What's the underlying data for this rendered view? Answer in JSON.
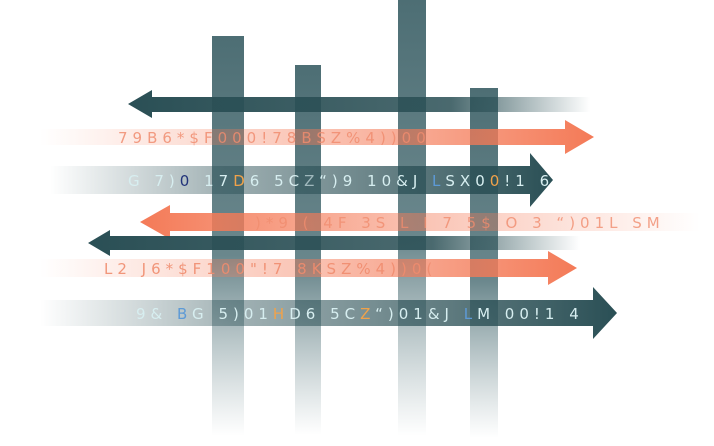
{
  "colors": {
    "teal_dark": "#2a4f55",
    "teal_pillar": "#4d6e74",
    "coral": "#f47a57",
    "coral_text": "#f08c6e",
    "light_text": "#d7eef0",
    "blue_accent": "#5d9ad6",
    "navy_accent": "#22337a",
    "orange_accent": "#f0a24a"
  },
  "streams": [
    {
      "id": "coral-1",
      "parts": [
        {
          "t": "79B6*$F000!78BSZ%4))00"
        }
      ]
    },
    {
      "id": "teal-1",
      "parts": [
        {
          "t": "G 7)"
        },
        {
          "t": "0",
          "c": "navy"
        },
        {
          "t": " 17"
        },
        {
          "t": "D",
          "c": "orange"
        },
        {
          "t": "6 5C"
        },
        {
          "t": "Z",
          "c": "grey"
        },
        {
          "t": "“)9 10&J "
        },
        {
          "t": "L",
          "c": "blue"
        },
        {
          "t": "SX0"
        },
        {
          "t": "0",
          "c": "orange"
        },
        {
          "t": "!1 6"
        }
      ]
    },
    {
      "id": "coral-2",
      "parts": [
        {
          "t": ")*9 ( 4F 3S L I 7 5$ O 3  “)01L SM"
        }
      ]
    },
    {
      "id": "coral-3",
      "parts": [
        {
          "t": "L2 J6*$F100\"!7 8KSZ%4))0("
        }
      ]
    },
    {
      "id": "teal-2",
      "parts": [
        {
          "t": "9& "
        },
        {
          "t": "B",
          "c": "blue"
        },
        {
          "t": "G 5)01"
        },
        {
          "t": "H",
          "c": "orange"
        },
        {
          "t": "D6 5C"
        },
        {
          "t": "Z",
          "c": "orange"
        },
        {
          "t": "“)01&J "
        },
        {
          "t": "L",
          "c": "blue"
        },
        {
          "t": "M 00!1 4"
        }
      ]
    }
  ]
}
